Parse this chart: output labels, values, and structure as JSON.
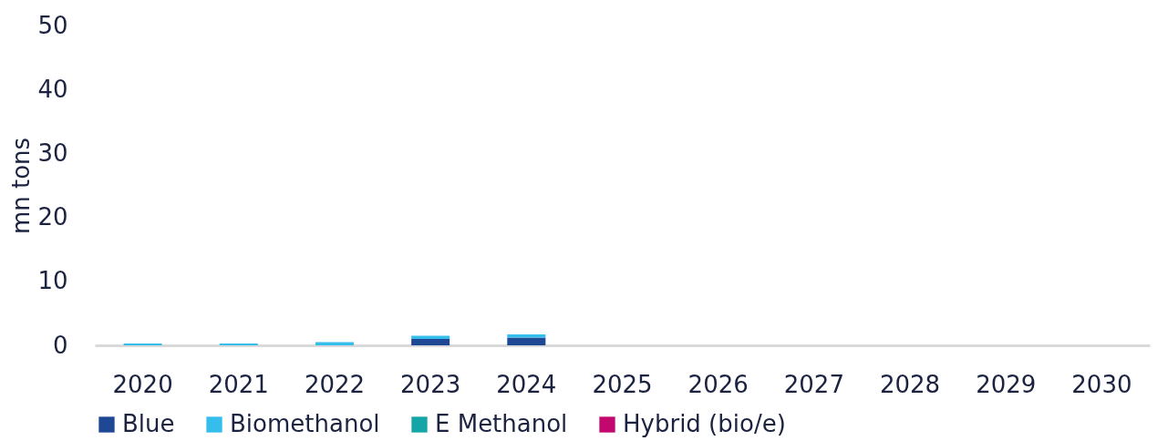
{
  "chart_data": {
    "type": "bar",
    "stacked": true,
    "ylabel": "mn tons",
    "categories": [
      "2020",
      "2021",
      "2022",
      "2023",
      "2024",
      "2025",
      "2026",
      "2027",
      "2028",
      "2029",
      "2030"
    ],
    "series": [
      {
        "name": "Blue",
        "color": "#1f4894",
        "values": [
          0,
          0,
          0,
          1.0,
          1.2,
          null,
          null,
          null,
          null,
          null,
          null
        ]
      },
      {
        "name": "Biomethanol",
        "color": "#35bdec",
        "values": [
          0.3,
          0.3,
          0.5,
          0.5,
          0.5,
          null,
          null,
          null,
          null,
          null,
          null
        ]
      },
      {
        "name": "E Methanol",
        "color": "#14a6a6",
        "values": [
          0,
          0,
          0,
          0,
          0,
          null,
          null,
          null,
          null,
          null,
          null
        ]
      },
      {
        "name": "Hybrid (bio/e)",
        "color": "#c2086e",
        "values": [
          0,
          0,
          0,
          0,
          0,
          null,
          null,
          null,
          null,
          null,
          null
        ]
      }
    ],
    "ylim": [
      0,
      50
    ],
    "yticks": [
      0,
      10,
      20,
      30,
      40,
      50
    ],
    "grid": false,
    "legend": "bottom"
  }
}
